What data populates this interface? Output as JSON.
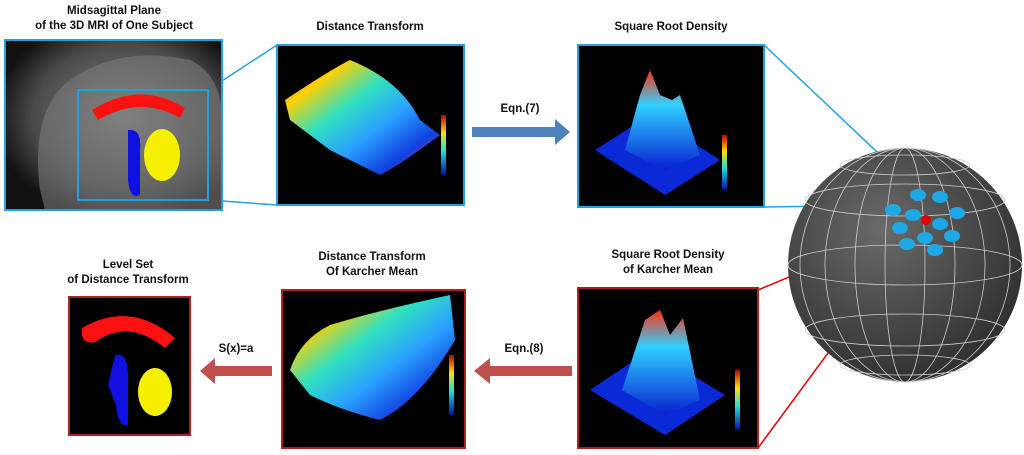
{
  "panels": [
    {
      "title": [
        "Midsagittal Plane",
        "of the 3D MRI of One Subject"
      ]
    },
    {
      "title": [
        "Distance Transform"
      ]
    },
    {
      "title": [
        "Square Root Density"
      ]
    },
    {
      "title": [
        "Level Set",
        "of Distance Transform"
      ]
    },
    {
      "title": [
        "Distance Transform",
        "Of Karcher Mean"
      ]
    },
    {
      "title": [
        "Square Root Density",
        "of Karcher Mean"
      ]
    }
  ],
  "arrows": [
    {
      "label": "Eqn.(7)"
    },
    {
      "label": "S(x)=a"
    },
    {
      "label": "Eqn.(8)"
    }
  ]
}
